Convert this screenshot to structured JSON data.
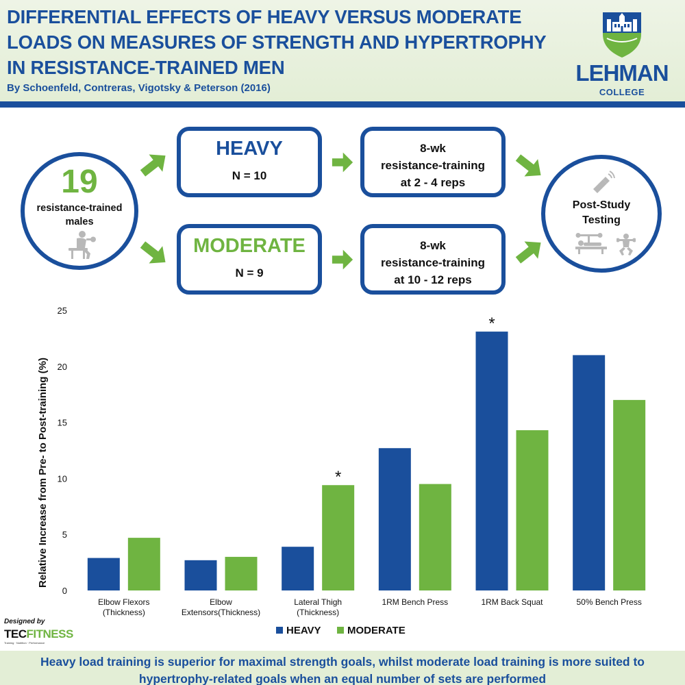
{
  "header": {
    "title_lines": [
      "DIFFERENTIAL EFFECTS OF HEAVY VERSUS MODERATE",
      "LOADS ON MEASURES OF STRENGTH AND HYPERTROPHY",
      "IN RESISTANCE-TRAINED MEN"
    ],
    "subtitle": "By Schoenfeld, Contreras, Vigotsky & Peterson (2016)",
    "logo_name": "LEHMAN",
    "logo_sub": "COLLEGE"
  },
  "flow": {
    "participants": {
      "count": "19",
      "line1": "resistance-trained",
      "line2": "males"
    },
    "heavy": {
      "title": "HEAVY",
      "n": "N = 10",
      "training_lines": [
        "8-wk",
        "resistance-training",
        "at 2 - 4 reps"
      ]
    },
    "moderate": {
      "title": "MODERATE",
      "n": "N = 9",
      "training_lines": [
        "8-wk",
        "resistance-training",
        "at 10 - 12 reps"
      ]
    },
    "testing": {
      "line1": "Post-Study",
      "line2": "Testing"
    },
    "icons": [
      "lifter-icon",
      "ultrasound-probe-icon",
      "bench-press-icon",
      "squat-icon"
    ]
  },
  "colors": {
    "heavy": "#1a4f9c",
    "moderate": "#6fb441",
    "accent_blue": "#1a4f9c"
  },
  "chart_data": {
    "type": "bar",
    "ylabel": "Relative Increase from Pre- to Post-training (%)",
    "xlabel": "",
    "ylim": [
      0,
      25
    ],
    "yticks": [
      0,
      5,
      10,
      15,
      20,
      25
    ],
    "grid": false,
    "legend": "bottom",
    "categories": [
      [
        "Elbow Flexors",
        "(Thickness)"
      ],
      [
        "Elbow",
        "Extensors(Thickness)"
      ],
      [
        "Lateral Thigh",
        "(Thickness)"
      ],
      [
        "1RM Bench Press"
      ],
      [
        "1RM Back Squat"
      ],
      [
        "50% Bench Press"
      ]
    ],
    "series": [
      {
        "name": "HEAVY",
        "color": "#1a4f9c",
        "values": [
          2.9,
          2.7,
          3.9,
          12.7,
          23.1,
          21.0
        ]
      },
      {
        "name": "MODERATE",
        "color": "#6fb441",
        "values": [
          4.7,
          3.0,
          9.4,
          9.5,
          14.3,
          17.0
        ]
      }
    ],
    "annotations": [
      {
        "category_index": 2,
        "series_index": 1,
        "text": "*"
      },
      {
        "category_index": 4,
        "series_index": 0,
        "text": "*"
      }
    ]
  },
  "credit": {
    "designed_by": "Designed by",
    "brand_a": "TEC",
    "brand_b": "FITNESS",
    "tagline": "Training · Nutrition · Performance"
  },
  "footer": {
    "lines": [
      "Heavy load training is superior for maximal strength goals, whilst moderate load training is more suited to",
      "hypertrophy-related goals when an equal number of sets are performed"
    ]
  }
}
